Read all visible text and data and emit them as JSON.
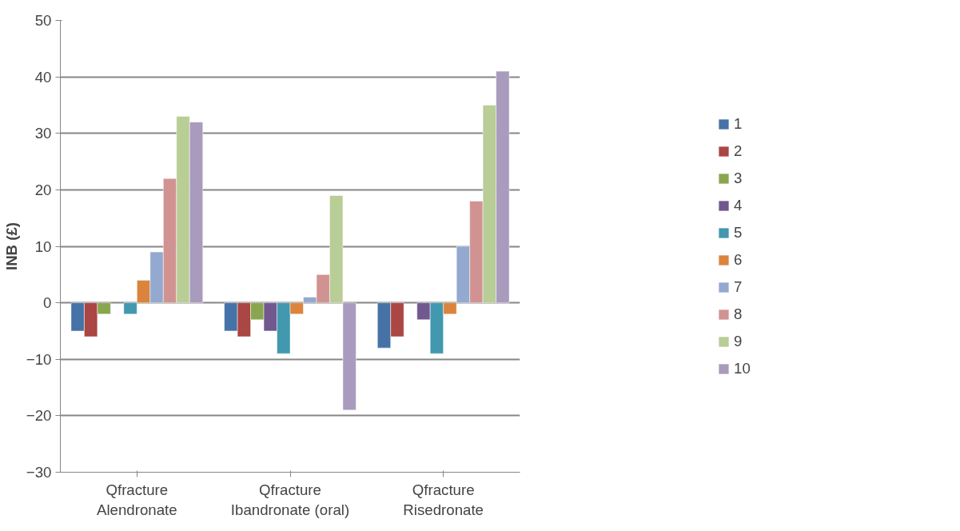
{
  "chart_data": {
    "type": "bar",
    "ylabel": "INB (£)",
    "categories": [
      "Qfracture\nAlendronate",
      "Qfracture\nIbandronate (oral)",
      "Qfracture\nRisedronate"
    ],
    "series": [
      {
        "name": "1",
        "color": "#4572a7",
        "values": [
          -5,
          -5,
          -8
        ]
      },
      {
        "name": "2",
        "color": "#aa4643",
        "values": [
          -6,
          -6,
          -6
        ]
      },
      {
        "name": "3",
        "color": "#89a54e",
        "values": [
          -2,
          -3,
          null
        ]
      },
      {
        "name": "4",
        "color": "#71588f",
        "values": [
          null,
          -5,
          -3
        ]
      },
      {
        "name": "5",
        "color": "#4198af",
        "values": [
          -2,
          -9,
          -9
        ]
      },
      {
        "name": "6",
        "color": "#db843d",
        "values": [
          4,
          -2,
          -2
        ]
      },
      {
        "name": "7",
        "color": "#93a9cf",
        "values": [
          9,
          1,
          10
        ]
      },
      {
        "name": "8",
        "color": "#d19392",
        "values": [
          22,
          5,
          18
        ]
      },
      {
        "name": "9",
        "color": "#b9cd96",
        "values": [
          33,
          19,
          35
        ]
      },
      {
        "name": "10",
        "color": "#a99bbd",
        "values": [
          32,
          -19,
          41
        ]
      }
    ],
    "ylim": [
      -30,
      50
    ],
    "yticks": [
      -30,
      -20,
      -10,
      0,
      10,
      20,
      30,
      40,
      50
    ],
    "grid": "y",
    "legend": "right"
  }
}
